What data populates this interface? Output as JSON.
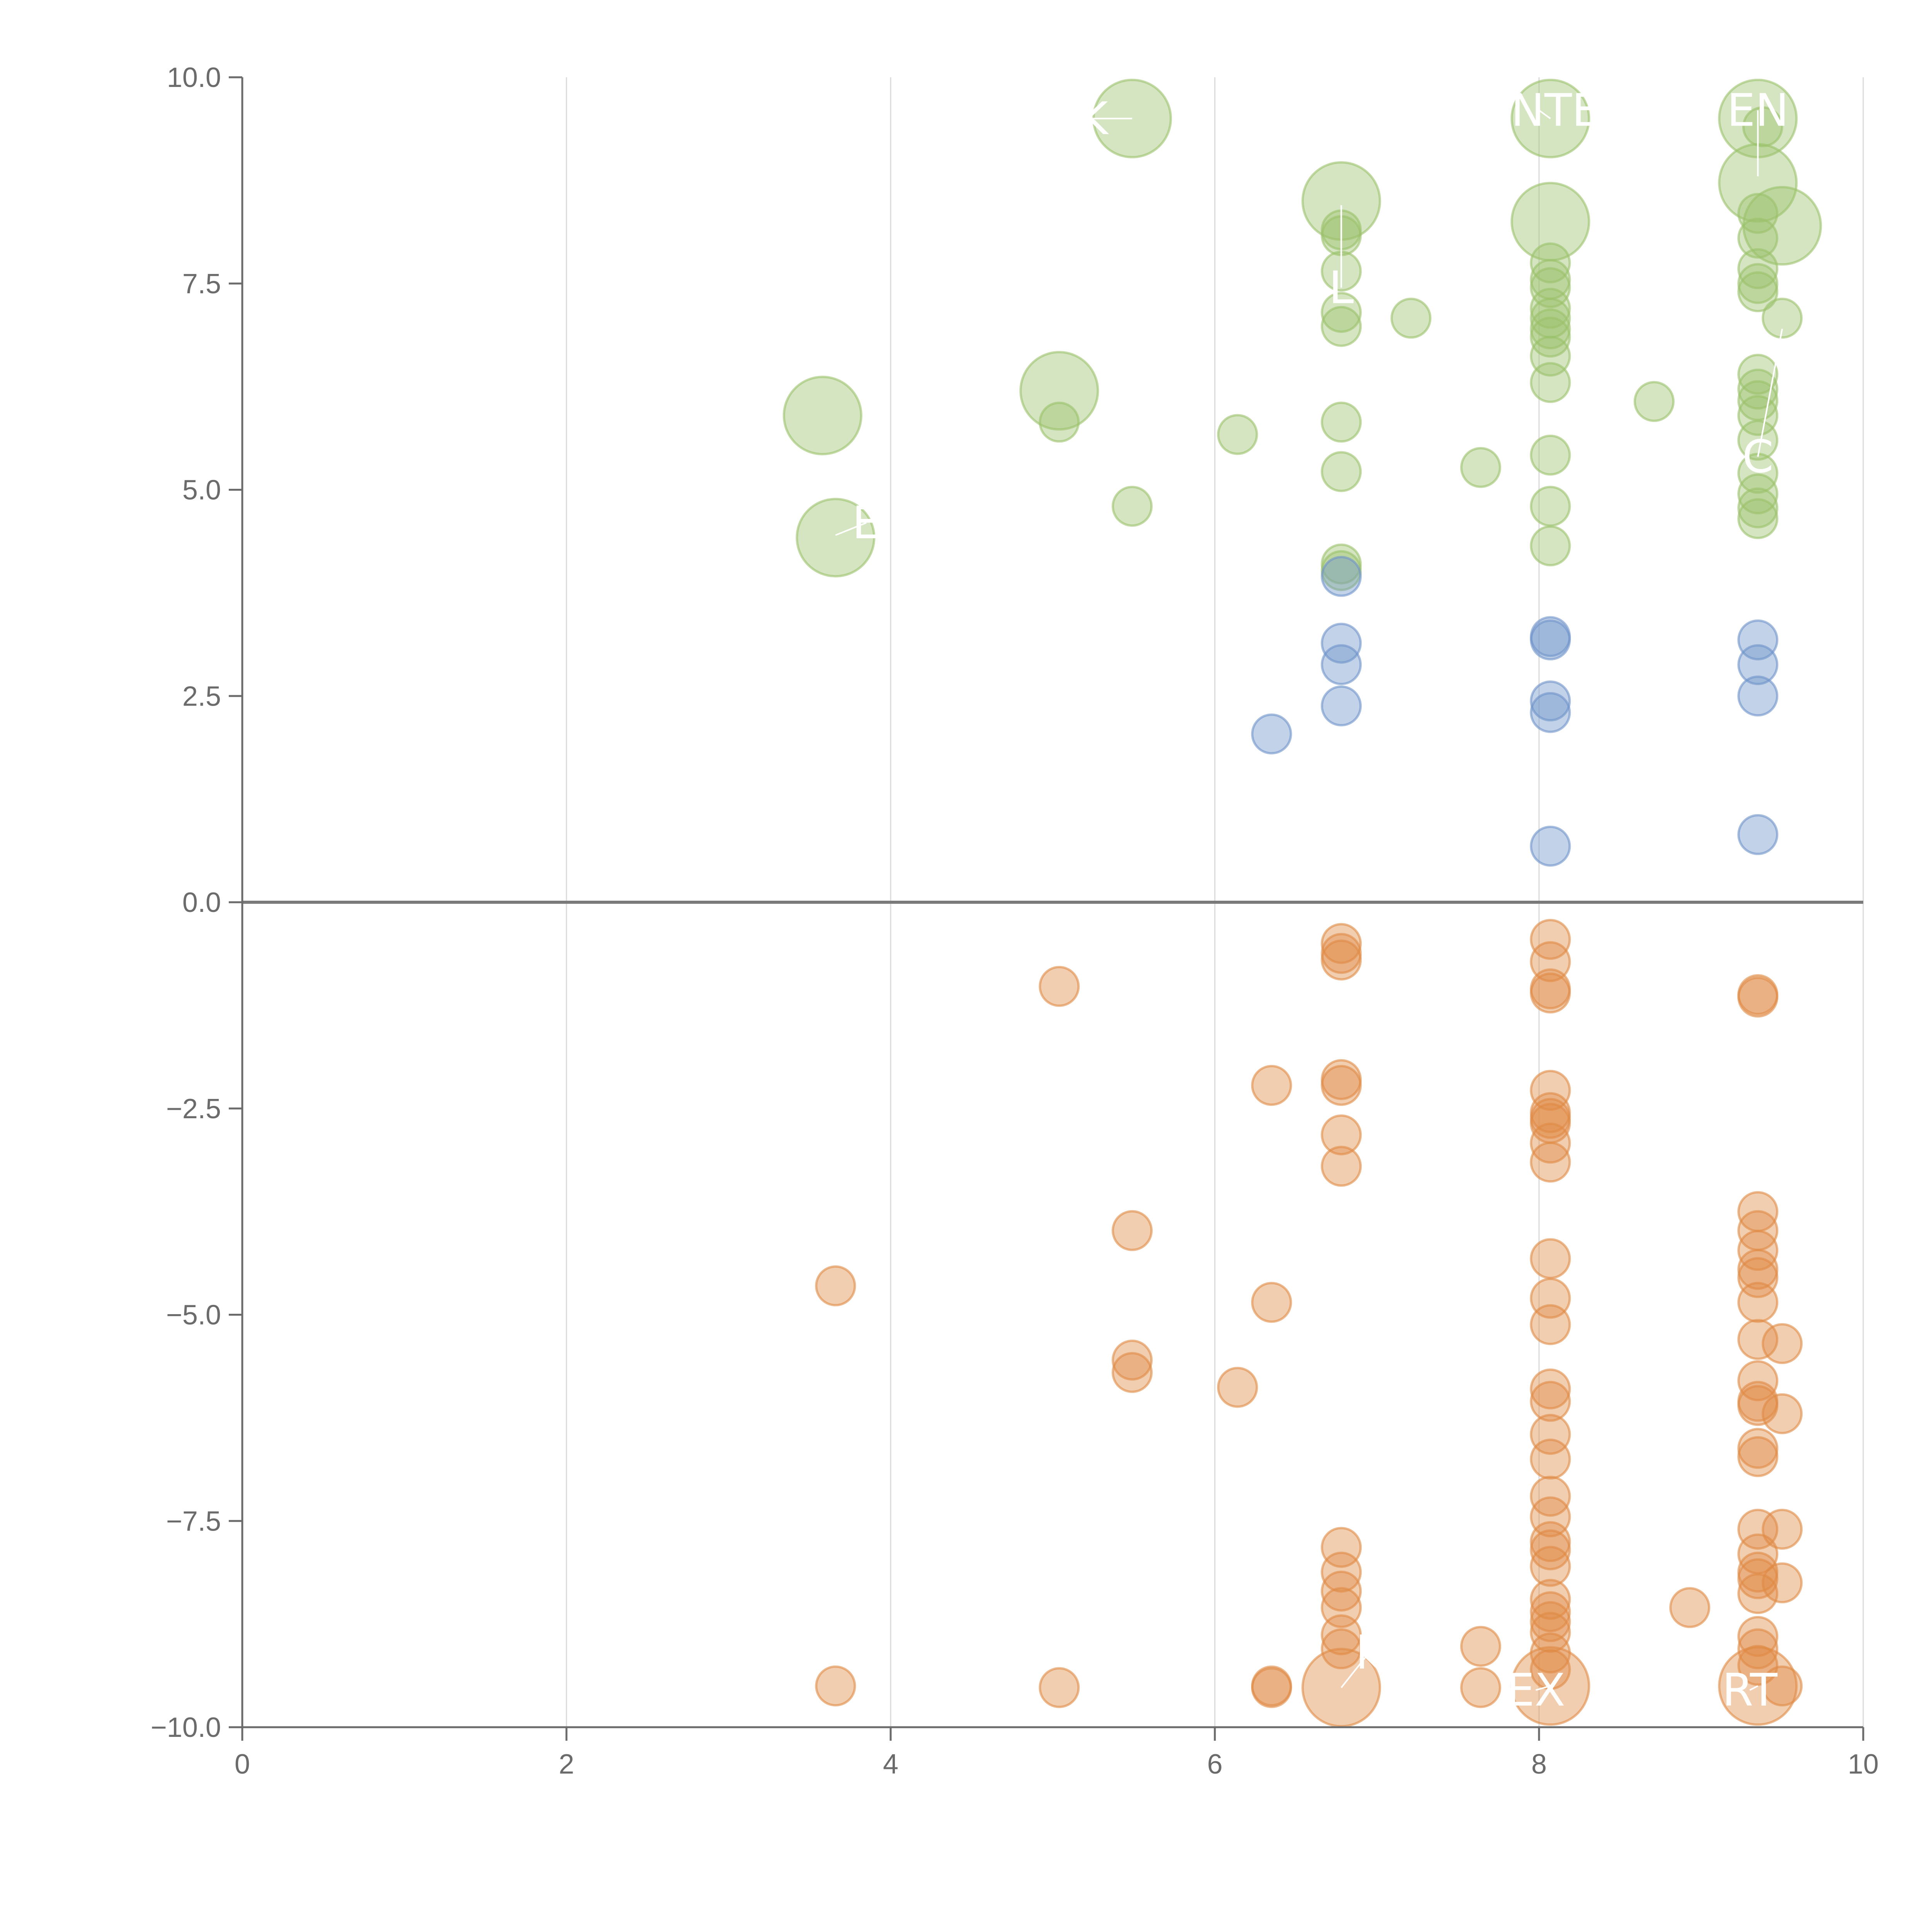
{
  "chart_data": {
    "type": "scatter",
    "title": "",
    "xlabel": "",
    "ylabel": "",
    "xlim": [
      0,
      10
    ],
    "ylim": [
      -10,
      10
    ],
    "x_ticks": [
      0,
      2,
      4,
      6,
      8,
      10
    ],
    "x_tick_labels": [
      "0",
      "2",
      "4",
      "6",
      "8",
      "10"
    ],
    "y_ticks": [
      -10,
      -7.5,
      -5,
      -2.5,
      0,
      2.5,
      5,
      7.5,
      10
    ],
    "y_tick_labels": [
      "−10.0",
      "−7.5",
      "−5.0",
      "−2.5",
      "0.0",
      "2.5",
      "5.0",
      "7.5",
      "10.0"
    ],
    "vertical_grid": true,
    "zero_line": true,
    "legend": "none",
    "colors": {
      "green": "#9bc26b",
      "blue": "#6e93c9",
      "orange": "#e08a45",
      "axis": "#6b6b6b",
      "grid": "#d9d9d9"
    },
    "series": [
      {
        "name": "green",
        "color": "#9bc26b",
        "points": [
          {
            "x": 3.58,
            "y": 5.9,
            "r": 3
          },
          {
            "x": 3.66,
            "y": 4.42,
            "r": 3
          },
          {
            "x": 5.04,
            "y": 6.2,
            "r": 3
          },
          {
            "x": 5.04,
            "y": 5.82,
            "r": 1
          },
          {
            "x": 5.49,
            "y": 9.5,
            "r": 3
          },
          {
            "x": 5.49,
            "y": 4.8,
            "r": 1
          },
          {
            "x": 6.14,
            "y": 5.67,
            "r": 1
          },
          {
            "x": 6.78,
            "y": 8.5,
            "r": 3
          },
          {
            "x": 6.78,
            "y": 8.15,
            "r": 1
          },
          {
            "x": 6.78,
            "y": 8.08,
            "r": 1
          },
          {
            "x": 6.78,
            "y": 7.65,
            "r": 1
          },
          {
            "x": 6.78,
            "y": 7.15,
            "r": 1
          },
          {
            "x": 6.78,
            "y": 6.98,
            "r": 1
          },
          {
            "x": 6.78,
            "y": 5.82,
            "r": 1
          },
          {
            "x": 6.78,
            "y": 5.22,
            "r": 1
          },
          {
            "x": 6.78,
            "y": 4.1,
            "r": 1
          },
          {
            "x": 6.78,
            "y": 4.02,
            "r": 1
          },
          {
            "x": 7.21,
            "y": 7.08,
            "r": 1
          },
          {
            "x": 7.64,
            "y": 5.27,
            "r": 1
          },
          {
            "x": 8.07,
            "y": 9.5,
            "r": 3
          },
          {
            "x": 8.07,
            "y": 8.25,
            "r": 3
          },
          {
            "x": 8.07,
            "y": 7.75,
            "r": 1
          },
          {
            "x": 8.07,
            "y": 7.55,
            "r": 1
          },
          {
            "x": 8.07,
            "y": 7.45,
            "r": 1
          },
          {
            "x": 8.07,
            "y": 7.2,
            "r": 1
          },
          {
            "x": 8.07,
            "y": 7.08,
            "r": 1
          },
          {
            "x": 8.07,
            "y": 6.95,
            "r": 1
          },
          {
            "x": 8.07,
            "y": 6.85,
            "r": 1
          },
          {
            "x": 8.07,
            "y": 6.62,
            "r": 1
          },
          {
            "x": 8.07,
            "y": 6.3,
            "r": 1
          },
          {
            "x": 8.07,
            "y": 5.42,
            "r": 1
          },
          {
            "x": 8.07,
            "y": 4.8,
            "r": 1
          },
          {
            "x": 8.07,
            "y": 4.32,
            "r": 1
          },
          {
            "x": 8.71,
            "y": 6.07,
            "r": 1
          },
          {
            "x": 9.35,
            "y": 9.5,
            "r": 3
          },
          {
            "x": 9.35,
            "y": 8.72,
            "r": 3
          },
          {
            "x": 9.35,
            "y": 8.35,
            "r": 1
          },
          {
            "x": 9.35,
            "y": 8.05,
            "r": 1
          },
          {
            "x": 9.35,
            "y": 7.68,
            "r": 1
          },
          {
            "x": 9.35,
            "y": 7.5,
            "r": 1
          },
          {
            "x": 9.35,
            "y": 7.4,
            "r": 1
          },
          {
            "x": 9.35,
            "y": 6.4,
            "r": 1
          },
          {
            "x": 9.35,
            "y": 6.22,
            "r": 1
          },
          {
            "x": 9.35,
            "y": 6.08,
            "r": 1
          },
          {
            "x": 9.35,
            "y": 5.9,
            "r": 1
          },
          {
            "x": 9.35,
            "y": 5.6,
            "r": 1
          },
          {
            "x": 9.35,
            "y": 5.2,
            "r": 1
          },
          {
            "x": 9.35,
            "y": 4.95,
            "r": 1
          },
          {
            "x": 9.35,
            "y": 4.78,
            "r": 1
          },
          {
            "x": 9.35,
            "y": 4.65,
            "r": 1
          },
          {
            "x": 9.5,
            "y": 8.2,
            "r": 3
          },
          {
            "x": 9.5,
            "y": 7.08,
            "r": 1
          },
          {
            "x": 9.38,
            "y": 9.4,
            "r": 1
          }
        ]
      },
      {
        "name": "blue",
        "color": "#6e93c9",
        "points": [
          {
            "x": 6.35,
            "y": 2.04,
            "r": 1
          },
          {
            "x": 6.78,
            "y": 3.95,
            "r": 1
          },
          {
            "x": 6.78,
            "y": 3.14,
            "r": 1
          },
          {
            "x": 6.78,
            "y": 2.88,
            "r": 1
          },
          {
            "x": 6.78,
            "y": 2.38,
            "r": 1
          },
          {
            "x": 8.07,
            "y": 3.22,
            "r": 1
          },
          {
            "x": 8.07,
            "y": 3.18,
            "r": 1
          },
          {
            "x": 8.07,
            "y": 2.44,
            "r": 1
          },
          {
            "x": 8.07,
            "y": 2.3,
            "r": 1
          },
          {
            "x": 8.07,
            "y": 0.68,
            "r": 1
          },
          {
            "x": 9.35,
            "y": 3.18,
            "r": 1
          },
          {
            "x": 9.35,
            "y": 2.88,
            "r": 1
          },
          {
            "x": 9.35,
            "y": 2.5,
            "r": 1
          },
          {
            "x": 9.35,
            "y": 0.82,
            "r": 1
          }
        ]
      },
      {
        "name": "orange",
        "color": "#e08a45",
        "points": [
          {
            "x": 3.66,
            "y": -4.65,
            "r": 1
          },
          {
            "x": 3.66,
            "y": -9.5,
            "r": 1
          },
          {
            "x": 5.04,
            "y": -1.02,
            "r": 1
          },
          {
            "x": 5.04,
            "y": -9.52,
            "r": 1
          },
          {
            "x": 5.49,
            "y": -3.98,
            "r": 1
          },
          {
            "x": 5.49,
            "y": -5.55,
            "r": 1
          },
          {
            "x": 5.49,
            "y": -5.7,
            "r": 1
          },
          {
            "x": 6.14,
            "y": -5.88,
            "r": 1
          },
          {
            "x": 6.35,
            "y": -2.22,
            "r": 1
          },
          {
            "x": 6.35,
            "y": -4.85,
            "r": 1
          },
          {
            "x": 6.35,
            "y": -9.52,
            "r": 1
          },
          {
            "x": 6.35,
            "y": -9.5,
            "r": 1
          },
          {
            "x": 6.78,
            "y": -0.5,
            "r": 1
          },
          {
            "x": 6.78,
            "y": -0.62,
            "r": 1
          },
          {
            "x": 6.78,
            "y": -0.7,
            "r": 1
          },
          {
            "x": 6.78,
            "y": -2.15,
            "r": 1
          },
          {
            "x": 6.78,
            "y": -2.22,
            "r": 1
          },
          {
            "x": 6.78,
            "y": -2.82,
            "r": 1
          },
          {
            "x": 6.78,
            "y": -3.2,
            "r": 1
          },
          {
            "x": 6.78,
            "y": -7.82,
            "r": 1
          },
          {
            "x": 6.78,
            "y": -8.12,
            "r": 1
          },
          {
            "x": 6.78,
            "y": -8.35,
            "r": 1
          },
          {
            "x": 6.78,
            "y": -8.55,
            "r": 1
          },
          {
            "x": 6.78,
            "y": -8.88,
            "r": 1
          },
          {
            "x": 6.78,
            "y": -9.05,
            "r": 1
          },
          {
            "x": 6.78,
            "y": -9.52,
            "r": 3
          },
          {
            "x": 7.64,
            "y": -9.02,
            "r": 1
          },
          {
            "x": 7.64,
            "y": -9.52,
            "r": 1
          },
          {
            "x": 8.07,
            "y": -0.45,
            "r": 1
          },
          {
            "x": 8.07,
            "y": -0.72,
            "r": 1
          },
          {
            "x": 8.07,
            "y": -1.05,
            "r": 1
          },
          {
            "x": 8.07,
            "y": -1.1,
            "r": 1
          },
          {
            "x": 8.07,
            "y": -2.28,
            "r": 1
          },
          {
            "x": 8.07,
            "y": -2.55,
            "r": 1
          },
          {
            "x": 8.07,
            "y": -2.62,
            "r": 1
          },
          {
            "x": 8.07,
            "y": -2.68,
            "r": 1
          },
          {
            "x": 8.07,
            "y": -2.92,
            "r": 1
          },
          {
            "x": 8.07,
            "y": -3.15,
            "r": 1
          },
          {
            "x": 8.07,
            "y": -4.32,
            "r": 1
          },
          {
            "x": 8.07,
            "y": -4.8,
            "r": 1
          },
          {
            "x": 8.07,
            "y": -5.12,
            "r": 1
          },
          {
            "x": 8.07,
            "y": -5.9,
            "r": 1
          },
          {
            "x": 8.07,
            "y": -6.05,
            "r": 1
          },
          {
            "x": 8.07,
            "y": -6.45,
            "r": 1
          },
          {
            "x": 8.07,
            "y": -6.75,
            "r": 1
          },
          {
            "x": 8.07,
            "y": -7.2,
            "r": 1
          },
          {
            "x": 8.07,
            "y": -7.45,
            "r": 1
          },
          {
            "x": 8.07,
            "y": -7.75,
            "r": 1
          },
          {
            "x": 8.07,
            "y": -7.85,
            "r": 1
          },
          {
            "x": 8.07,
            "y": -8.05,
            "r": 1
          },
          {
            "x": 8.07,
            "y": -8.45,
            "r": 1
          },
          {
            "x": 8.07,
            "y": -8.6,
            "r": 1
          },
          {
            "x": 8.07,
            "y": -8.72,
            "r": 1
          },
          {
            "x": 8.07,
            "y": -8.85,
            "r": 1
          },
          {
            "x": 8.07,
            "y": -9.1,
            "r": 1
          },
          {
            "x": 8.07,
            "y": -9.3,
            "r": 1
          },
          {
            "x": 8.07,
            "y": -9.5,
            "r": 3
          },
          {
            "x": 8.93,
            "y": -8.55,
            "r": 1
          },
          {
            "x": 9.35,
            "y": -1.12,
            "r": 1
          },
          {
            "x": 9.35,
            "y": -1.15,
            "r": 1
          },
          {
            "x": 9.35,
            "y": -3.75,
            "r": 1
          },
          {
            "x": 9.35,
            "y": -3.98,
            "r": 1
          },
          {
            "x": 9.35,
            "y": -4.22,
            "r": 1
          },
          {
            "x": 9.35,
            "y": -4.45,
            "r": 1
          },
          {
            "x": 9.35,
            "y": -4.55,
            "r": 1
          },
          {
            "x": 9.35,
            "y": -4.85,
            "r": 1
          },
          {
            "x": 9.35,
            "y": -5.3,
            "r": 1
          },
          {
            "x": 9.35,
            "y": -5.8,
            "r": 1
          },
          {
            "x": 9.35,
            "y": -6.05,
            "r": 1
          },
          {
            "x": 9.35,
            "y": -6.1,
            "r": 1
          },
          {
            "x": 9.35,
            "y": -6.62,
            "r": 1
          },
          {
            "x": 9.35,
            "y": -6.72,
            "r": 1
          },
          {
            "x": 9.35,
            "y": -7.6,
            "r": 1
          },
          {
            "x": 9.35,
            "y": -7.9,
            "r": 1
          },
          {
            "x": 9.35,
            "y": -8.12,
            "r": 1
          },
          {
            "x": 9.35,
            "y": -8.2,
            "r": 1
          },
          {
            "x": 9.35,
            "y": -8.38,
            "r": 1
          },
          {
            "x": 9.35,
            "y": -8.9,
            "r": 1
          },
          {
            "x": 9.35,
            "y": -9.05,
            "r": 1
          },
          {
            "x": 9.35,
            "y": -9.25,
            "r": 1
          },
          {
            "x": 9.35,
            "y": -9.5,
            "r": 3
          },
          {
            "x": 9.5,
            "y": -5.35,
            "r": 1
          },
          {
            "x": 9.5,
            "y": -6.2,
            "r": 1
          },
          {
            "x": 9.5,
            "y": -7.6,
            "r": 1
          },
          {
            "x": 9.5,
            "y": -8.25,
            "r": 1
          },
          {
            "x": 9.5,
            "y": -9.5,
            "r": 1
          }
        ]
      }
    ],
    "annotations": [
      {
        "text": "K",
        "x": 5.25,
        "y": 9.5,
        "px": 5.49,
        "py": 9.5
      },
      {
        "text": "CONTEN",
        "x": 8.0,
        "y": 9.6,
        "px": 8.07,
        "py": 9.5
      },
      {
        "text": "EN",
        "x": 9.35,
        "y": 9.6,
        "px": 9.35,
        "py": 8.8
      },
      {
        "text": "L",
        "x": 6.78,
        "y": 7.45,
        "px": 6.78,
        "py": 8.45
      },
      {
        "text": "E",
        "x": 3.85,
        "y": 4.6,
        "px": 3.66,
        "py": 4.45
      },
      {
        "text": "C",
        "x": 9.35,
        "y": 5.4,
        "px": 9.5,
        "py": 6.95
      },
      {
        "text": "k",
        "x": 6.95,
        "y": -9.1,
        "px": 6.78,
        "py": -9.52
      },
      {
        "text": "EX",
        "x": 7.98,
        "y": -9.55,
        "px": 8.07,
        "py": -9.5
      },
      {
        "text": "RT",
        "x": 9.3,
        "y": -9.55,
        "px": 9.35,
        "py": -9.5
      }
    ]
  }
}
